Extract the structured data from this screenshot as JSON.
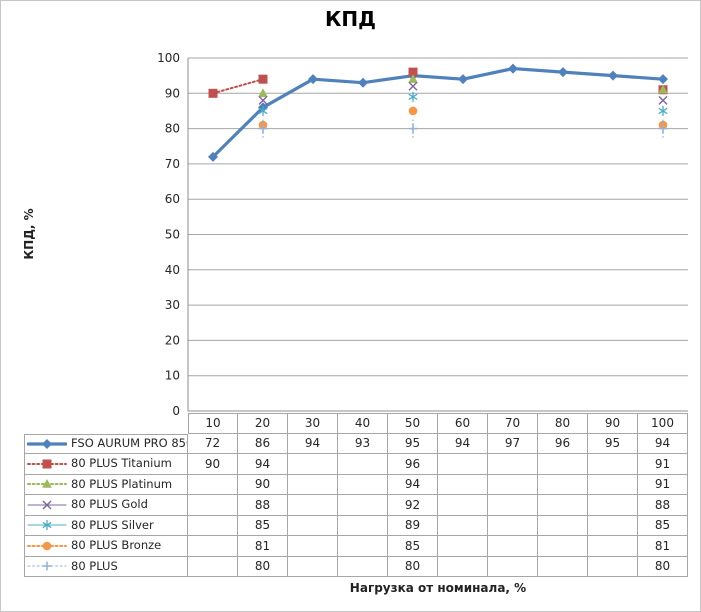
{
  "window": {
    "background": "#ffffff",
    "border_color": "#c6c6c6"
  },
  "chart_data": {
    "type": "line",
    "title": "КПД",
    "xlabel": "Нагрузка от номинала, %",
    "ylabel": "КПД, %",
    "ylim": [
      0,
      100
    ],
    "yticks": [
      0,
      10,
      20,
      30,
      40,
      50,
      60,
      70,
      80,
      90,
      100
    ],
    "categories": [
      10,
      20,
      30,
      40,
      50,
      60,
      70,
      80,
      90,
      100
    ],
    "grid": true,
    "legend_position": "data-table-left",
    "axis_color": "#8c8c8c",
    "grid_color": "#a6a6a6",
    "table_border_color": "#a6a6a6",
    "text_color": "#262626",
    "series": [
      {
        "name": "FSO AURUM PRO 850",
        "color": "#4f81bd",
        "marker": "diamond",
        "line": "solid",
        "line_width": 3.2,
        "values": [
          72,
          86,
          94,
          93,
          95,
          94,
          97,
          96,
          95,
          94
        ]
      },
      {
        "name": "80 PLUS Titanium",
        "color": "#c0504d",
        "marker": "square",
        "line": "dotted",
        "line_width": 2,
        "values": [
          90,
          94,
          null,
          null,
          96,
          null,
          null,
          null,
          null,
          91
        ]
      },
      {
        "name": "80 PLUS Platinum",
        "color": "#9bbb59",
        "marker": "triangle",
        "line": "dotted",
        "line_width": 2,
        "values": [
          null,
          90,
          null,
          null,
          94,
          null,
          null,
          null,
          null,
          91
        ]
      },
      {
        "name": "80 PLUS Gold",
        "color": "#8064a2",
        "marker": "x",
        "line": "solid",
        "line_width": 1,
        "values": [
          null,
          88,
          null,
          null,
          92,
          null,
          null,
          null,
          null,
          88
        ]
      },
      {
        "name": "80 PLUS Silver",
        "color": "#4bacc6",
        "marker": "asterisk",
        "line": "solid",
        "line_width": 1,
        "values": [
          null,
          85,
          null,
          null,
          89,
          null,
          null,
          null,
          null,
          85
        ]
      },
      {
        "name": "80 PLUS Bronze",
        "color": "#f79646",
        "marker": "circle",
        "line": "dotted",
        "line_width": 2,
        "values": [
          null,
          81,
          null,
          null,
          85,
          null,
          null,
          null,
          null,
          81
        ]
      },
      {
        "name": "80 PLUS",
        "color": "#95b3d7",
        "marker": "plus",
        "line": "dotted",
        "line_width": 1,
        "values": [
          null,
          80,
          null,
          null,
          80,
          null,
          null,
          null,
          null,
          80
        ]
      }
    ]
  }
}
